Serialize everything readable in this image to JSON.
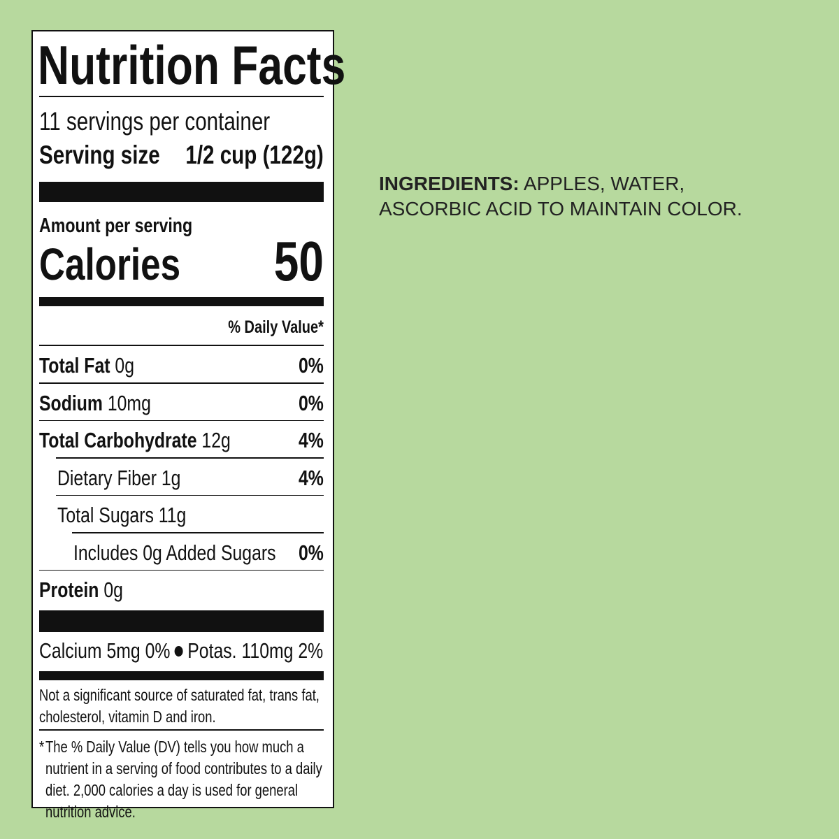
{
  "label": {
    "title": "Nutrition Facts",
    "servings": "11 servings per container",
    "serving_size": {
      "label": "Serving size",
      "value": "1/2 cup (122g)"
    },
    "amount_per_serving": "Amount per serving",
    "calories": {
      "label": "Calories",
      "value": 50
    },
    "daily_value_header": "% Daily Value*",
    "nutrients": [
      {
        "name": "Total Fat",
        "amount": "0g",
        "dv": "0%"
      },
      {
        "name": "Sodium",
        "amount": "10mg",
        "dv": "0%"
      },
      {
        "name": "Total Carbohydrate",
        "amount": "12g",
        "dv": "4%"
      },
      {
        "name": "Dietary Fiber 1g",
        "dv": "4%"
      },
      {
        "name": "Total Sugars 11g"
      },
      {
        "name": "Includes 0g Added Sugars",
        "dv": "0%"
      },
      {
        "name": "Protein",
        "amount": "0g"
      }
    ],
    "minerals": [
      "Calcium 5mg 0%",
      "Potas. 110mg 2%"
    ],
    "note": "Not a significant source of saturated fat, trans fat, cholesterol, vitamin D and iron.",
    "footnote_mark": "*",
    "footnote": "The % Daily Value (DV) tells you how much a nutrient in a serving of food contributes to a daily diet. 2,000 calories a day is used for general nutrition advice."
  },
  "ingredients": {
    "label": "INGREDIENTS:",
    "text": "APPLES, WATER, ASCORBIC ACID TO MAINTAIN COLOR."
  }
}
